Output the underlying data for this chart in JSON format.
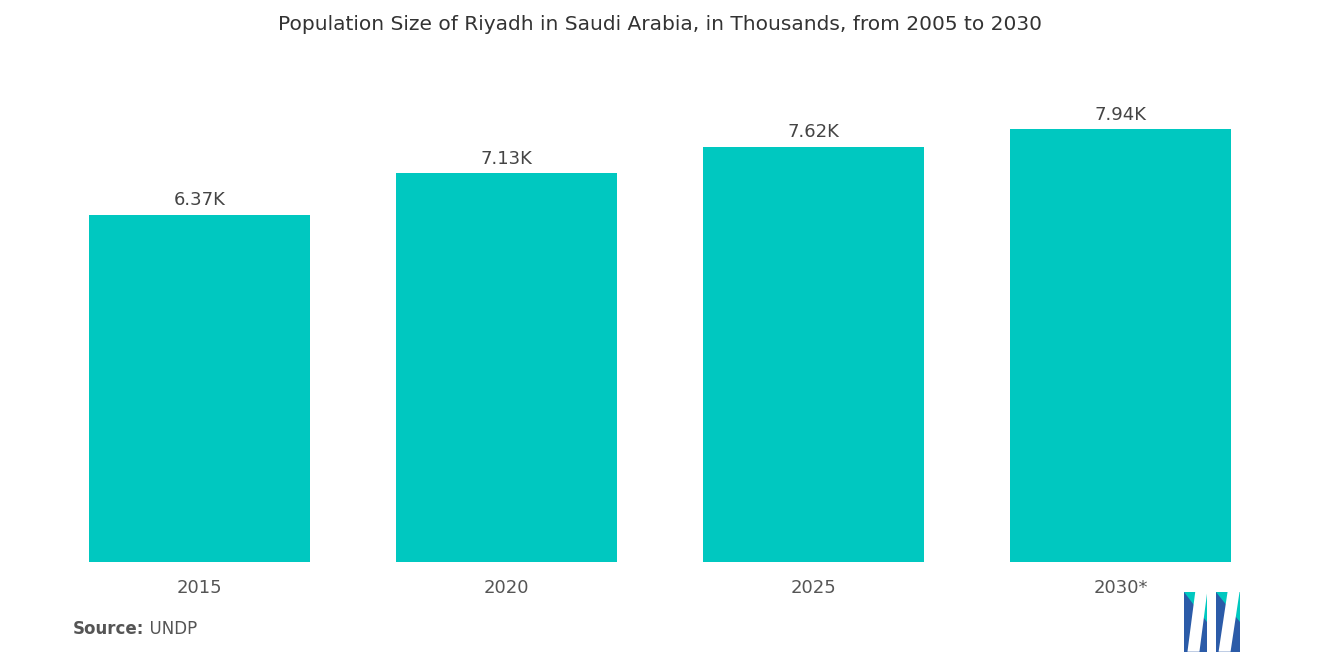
{
  "title": "Population Size of Riyadh in Saudi Arabia, in Thousands, from 2005 to 2030",
  "categories": [
    "2015",
    "2020",
    "2025",
    "2030*"
  ],
  "values": [
    6370,
    7130,
    7620,
    7940
  ],
  "labels": [
    "6.37K",
    "7.13K",
    "7.62K",
    "7.94K"
  ],
  "bar_color": "#00C8C0",
  "background_color": "#FFFFFF",
  "title_fontsize": 14.5,
  "label_fontsize": 13,
  "tick_fontsize": 13,
  "source_label": "Source:",
  "source_value": "  UNDP",
  "source_fontsize": 12,
  "ylim": [
    0,
    9200
  ],
  "bar_width": 0.72
}
